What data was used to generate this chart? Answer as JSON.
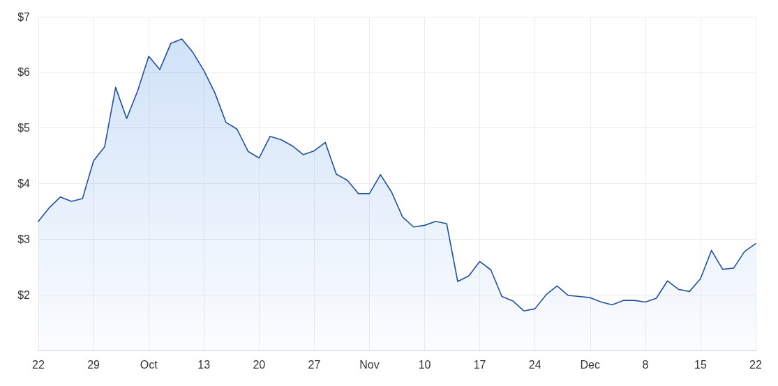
{
  "chart_data": {
    "type": "area",
    "x": [
      "--09-22T00:00",
      "--09-23T09:36",
      "--09-24T19:12",
      "--09-26T04:48",
      "--09-27T14:24",
      "--09-29T00:00",
      "--09-30T09:36",
      "--10-01T19:12",
      "--10-03T04:48",
      "--10-04T14:24",
      "--10-06T00:00",
      "--10-07T09:36",
      "--10-08T19:12",
      "--10-10T04:48",
      "--10-11T14:24",
      "--10-13T00:00",
      "--10-14T09:36",
      "--10-15T19:12",
      "--10-17T04:48",
      "--10-18T14:24",
      "--10-20T00:00",
      "--10-21T09:36",
      "--10-22T19:12",
      "--10-24T04:48",
      "--10-25T14:24",
      "--10-27T00:00",
      "--10-28T09:36",
      "--10-29T19:12",
      "--10-31T04:48",
      "--11-01T14:24",
      "--11-03T00:00",
      "--11-04T09:36",
      "--11-05T19:12",
      "--11-07T04:48",
      "--11-08T14:24",
      "--11-10T00:00",
      "--11-11T09:36",
      "--11-12T19:12",
      "--11-14T04:48",
      "--11-15T14:24",
      "--11-17T00:00",
      "--11-18T09:36",
      "--11-19T19:12",
      "--11-21T04:48",
      "--11-22T14:24",
      "--11-24T00:00",
      "--11-25T09:36",
      "--11-26T19:12",
      "--11-28T04:48",
      "--11-29T14:24",
      "--12-01T00:00",
      "--12-02T09:36",
      "--12-03T19:12",
      "--12-05T04:48",
      "--12-06T14:24",
      "--12-08T00:00",
      "--12-09T09:36",
      "--12-10T19:12",
      "--12-12T04:48",
      "--12-13T14:24",
      "--12-15T00:00",
      "--12-16T09:36",
      "--12-17T19:12",
      "--12-19T04:48",
      "--12-20T14:24",
      "--12-22T00:00"
    ],
    "series": [
      {
        "color": "#2150a0",
        "values": [
          3.32,
          3.57,
          3.76,
          3.68,
          3.73,
          4.41,
          4.66,
          5.73,
          5.17,
          5.67,
          6.29,
          6.05,
          6.52,
          6.6,
          6.36,
          6.03,
          5.63,
          5.1,
          4.98,
          4.58,
          4.46,
          4.85,
          4.79,
          4.68,
          4.52,
          4.59,
          4.74,
          4.17,
          4.06,
          3.82,
          3.82,
          4.16,
          3.85,
          3.4,
          3.22,
          3.25,
          3.32,
          3.28,
          2.24,
          2.34,
          2.6,
          2.45,
          1.97,
          1.89,
          1.71,
          1.75,
          2.0,
          2.16,
          1.99,
          1.97,
          1.95,
          1.87,
          1.82,
          1.9,
          1.9,
          1.87,
          1.94,
          2.25,
          2.1,
          2.06,
          2.29,
          2.8,
          2.46,
          2.48,
          2.78,
          2.92
        ]
      }
    ],
    "xlim": [
      "--09-22",
      "--12-22"
    ],
    "xticks": [
      {
        "value": "--09-22",
        "label": "22"
      },
      {
        "value": "--09-29",
        "label": "29"
      },
      {
        "value": "--10-06",
        "label": "Oct"
      },
      {
        "value": "--10-13",
        "label": "13"
      },
      {
        "value": "--10-20",
        "label": "20"
      },
      {
        "value": "--10-27",
        "label": "27"
      },
      {
        "value": "--11-03",
        "label": "Nov"
      },
      {
        "value": "--11-10",
        "label": "10"
      },
      {
        "value": "--11-17",
        "label": "17"
      },
      {
        "value": "--11-24",
        "label": "24"
      },
      {
        "value": "--12-01",
        "label": "Dec"
      },
      {
        "value": "--12-08",
        "label": "8"
      },
      {
        "value": "--12-15",
        "label": "15"
      },
      {
        "value": "--12-22",
        "label": "22"
      }
    ],
    "ylim": [
      1,
      7
    ],
    "yticks": [
      {
        "value": 2,
        "label": "$2"
      },
      {
        "value": 3,
        "label": "$3"
      },
      {
        "value": 4,
        "label": "$4"
      },
      {
        "value": 5,
        "label": "$5"
      },
      {
        "value": 6,
        "label": "$6"
      },
      {
        "value": 7,
        "label": "$7"
      }
    ],
    "grid": true,
    "marker": "none",
    "line_style": "solid"
  }
}
